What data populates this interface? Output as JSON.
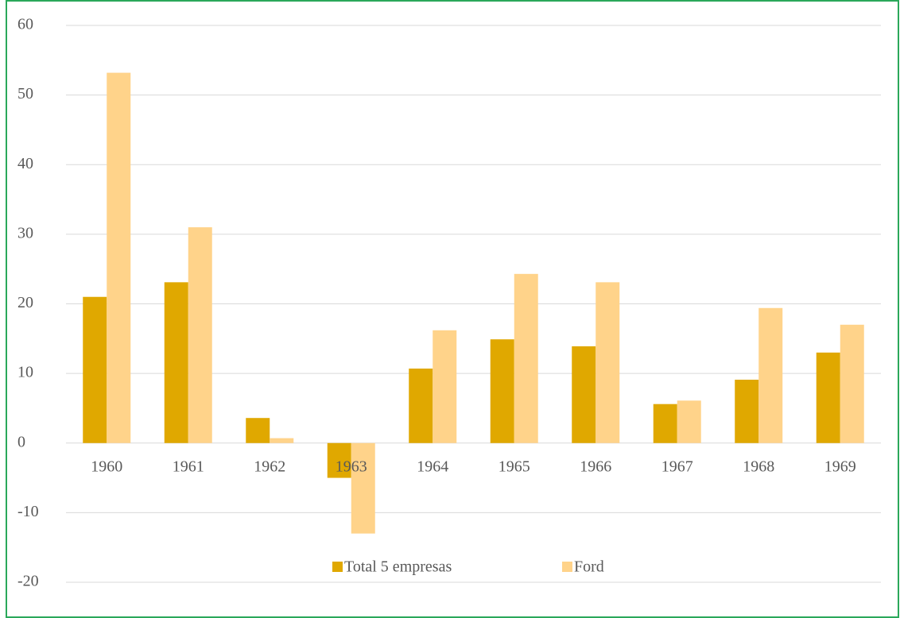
{
  "chart_data": {
    "type": "bar",
    "categories": [
      "1960",
      "1961",
      "1962",
      "1963",
      "1964",
      "1965",
      "1966",
      "1967",
      "1968",
      "1969"
    ],
    "series": [
      {
        "name": "Total 5 empresas",
        "color": "#e0a800",
        "values": [
          21.0,
          23.1,
          3.6,
          -5.0,
          10.7,
          14.9,
          13.9,
          5.6,
          9.1,
          13.0
        ]
      },
      {
        "name": "Ford",
        "color": "#ffd38a",
        "values": [
          53.2,
          31.0,
          0.7,
          -13.0,
          16.2,
          24.3,
          23.1,
          6.1,
          19.4,
          17.0
        ]
      }
    ],
    "ylim": [
      -20,
      60
    ],
    "yticks": [
      -20,
      -10,
      0,
      10,
      20,
      30,
      40,
      50,
      60
    ],
    "grid": true,
    "legend": "bottom"
  }
}
